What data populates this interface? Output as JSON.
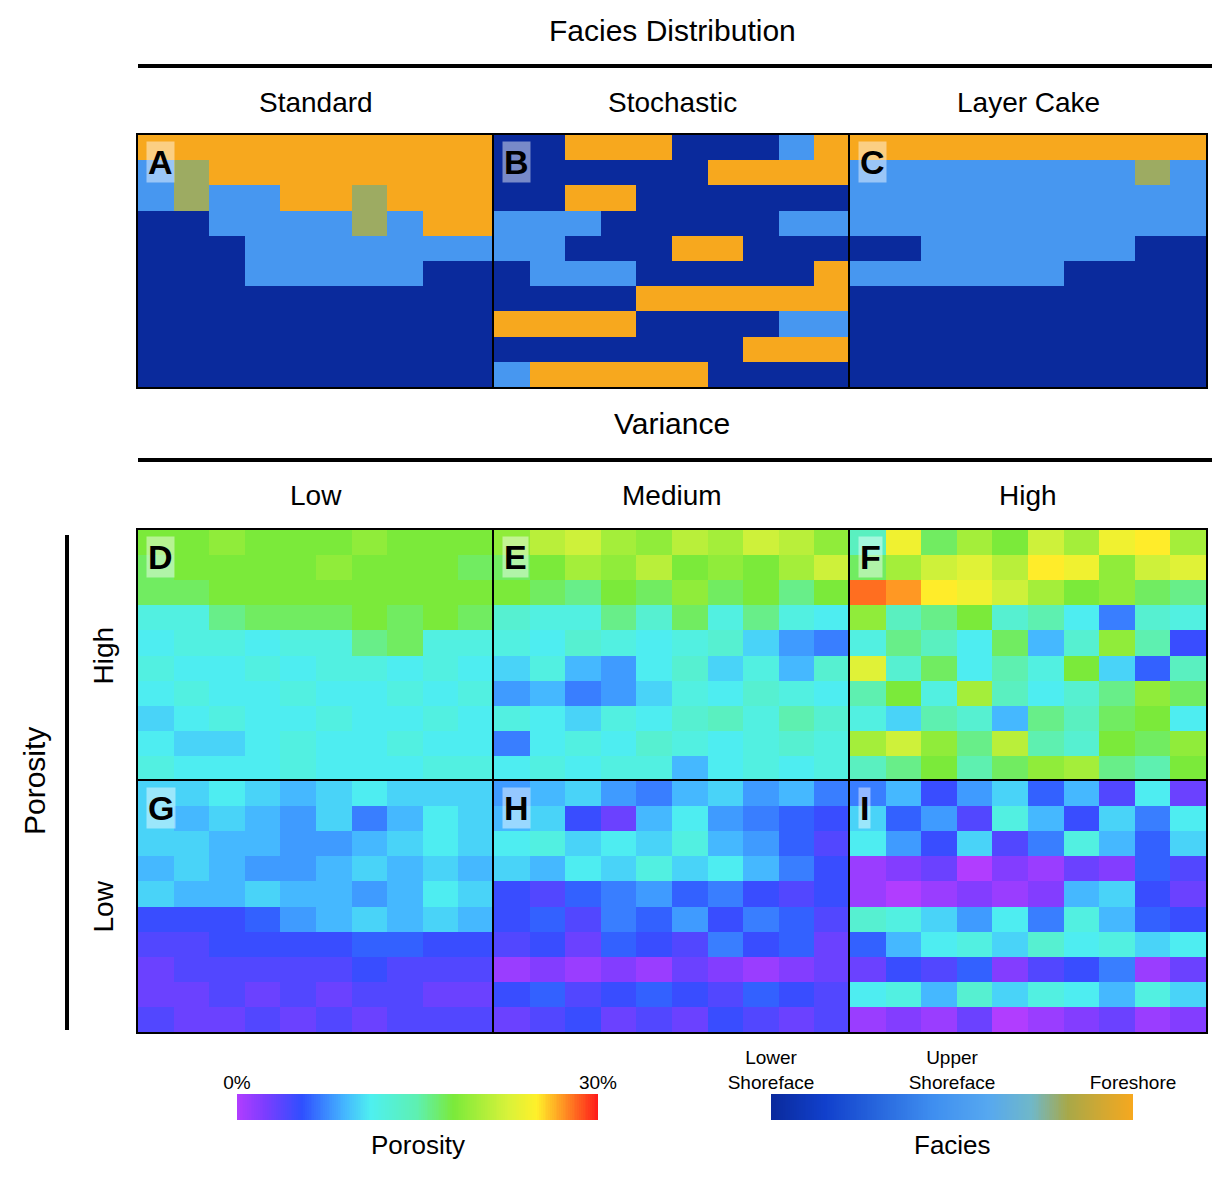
{
  "chart_data": {
    "type": "heatmap",
    "title": "Facies Distribution",
    "columns": [
      "Standard",
      "Stochastic",
      "Layer Cake"
    ],
    "variance_title": "Variance",
    "variance_columns": [
      "Low",
      "Medium",
      "High"
    ],
    "porosity_title": "Porosity",
    "porosity_rows": [
      "High",
      "Low"
    ],
    "tick_labels": false,
    "facies_panels": [
      {
        "label": "A",
        "cells": [
          [
            2,
            2,
            2,
            2,
            2,
            2,
            2,
            2,
            2,
            2
          ],
          [
            1,
            1.6,
            2,
            2,
            2,
            2,
            2,
            2,
            2,
            2
          ],
          [
            1,
            1.6,
            1,
            1,
            2,
            2,
            1.6,
            2,
            2,
            2
          ],
          [
            0,
            0,
            1,
            1,
            1,
            1,
            1.6,
            1,
            2,
            2
          ],
          [
            0,
            0,
            0,
            1,
            1,
            1,
            1,
            1,
            1,
            1
          ],
          [
            0,
            0,
            0,
            1,
            1,
            1,
            1,
            1,
            0,
            0
          ],
          [
            0,
            0,
            0,
            0,
            0,
            0,
            0,
            0,
            0,
            0
          ],
          [
            0,
            0,
            0,
            0,
            0,
            0,
            0,
            0,
            0,
            0
          ],
          [
            0,
            0,
            0,
            0,
            0,
            0,
            0,
            0,
            0,
            0
          ],
          [
            0,
            0,
            0,
            0,
            0,
            0,
            0,
            0,
            0,
            0
          ]
        ]
      },
      {
        "label": "B",
        "cells": [
          [
            0,
            0,
            2,
            2,
            2,
            0,
            0,
            0,
            1,
            2
          ],
          [
            0,
            0,
            0,
            0,
            0,
            0,
            2,
            2,
            2,
            2
          ],
          [
            0,
            0,
            2,
            2,
            0,
            0,
            0,
            0,
            0,
            0
          ],
          [
            1,
            1,
            1,
            0,
            0,
            0,
            0,
            0,
            1,
            1
          ],
          [
            1,
            1,
            0,
            0,
            0,
            2,
            2,
            0,
            0,
            0
          ],
          [
            0,
            1,
            1,
            1,
            0,
            0,
            0,
            0,
            0,
            2
          ],
          [
            0,
            0,
            0,
            0,
            2,
            2,
            2,
            2,
            2,
            2
          ],
          [
            2,
            2,
            2,
            2,
            0,
            0,
            0,
            0,
            1,
            1
          ],
          [
            0,
            0,
            0,
            0,
            0,
            0,
            0,
            2,
            2,
            2
          ],
          [
            1,
            2,
            2,
            2,
            2,
            2,
            0,
            0,
            0,
            0
          ]
        ]
      },
      {
        "label": "C",
        "cells": [
          [
            2,
            2,
            2,
            2,
            2,
            2,
            2,
            2,
            2,
            2
          ],
          [
            1,
            1,
            1,
            1,
            1,
            1,
            1,
            1,
            1.6,
            1
          ],
          [
            1,
            1,
            1,
            1,
            1,
            1,
            1,
            1,
            1,
            1
          ],
          [
            1,
            1,
            1,
            1,
            1,
            1,
            1,
            1,
            1,
            1
          ],
          [
            0,
            0,
            1,
            1,
            1,
            1,
            1,
            1,
            0,
            0
          ],
          [
            1,
            1,
            1,
            1,
            1,
            1,
            0,
            0,
            0,
            0
          ],
          [
            0,
            0,
            0,
            0,
            0,
            0,
            0,
            0,
            0,
            0
          ],
          [
            0,
            0,
            0,
            0,
            0,
            0,
            0,
            0,
            0,
            0
          ],
          [
            0,
            0,
            0,
            0,
            0,
            0,
            0,
            0,
            0,
            0
          ],
          [
            0,
            0,
            0,
            0,
            0,
            0,
            0,
            0,
            0,
            0
          ]
        ]
      }
    ],
    "porosity_panels": [
      {
        "label": "D",
        "cells": [
          [
            18,
            18,
            19,
            18,
            18,
            18,
            19,
            18,
            18,
            18
          ],
          [
            17,
            18,
            18,
            18,
            18,
            19,
            18,
            18,
            18,
            17
          ],
          [
            17,
            17,
            18,
            18,
            18,
            18,
            18,
            18,
            18,
            18
          ],
          [
            12,
            12,
            16,
            17,
            17,
            17,
            18,
            17,
            18,
            17
          ],
          [
            11,
            12,
            12,
            11,
            12,
            12,
            16,
            17,
            12,
            12
          ],
          [
            12,
            11,
            11,
            12,
            11,
            12,
            12,
            11,
            12,
            11
          ],
          [
            11,
            12,
            11,
            11,
            12,
            11,
            11,
            12,
            11,
            12
          ],
          [
            10,
            11,
            12,
            11,
            11,
            12,
            11,
            11,
            12,
            11
          ],
          [
            11,
            10,
            10,
            11,
            12,
            11,
            11,
            12,
            11,
            11
          ],
          [
            12,
            11,
            11,
            11,
            12,
            11,
            11,
            11,
            12,
            12
          ]
        ]
      },
      {
        "label": "E",
        "cells": [
          [
            19,
            21,
            22,
            20,
            19,
            21,
            20,
            22,
            21,
            19
          ],
          [
            17,
            18,
            20,
            19,
            21,
            18,
            19,
            18,
            20,
            22
          ],
          [
            18,
            17,
            16,
            18,
            17,
            19,
            17,
            18,
            16,
            18
          ],
          [
            13,
            12,
            12,
            16,
            13,
            17,
            12,
            16,
            12,
            11
          ],
          [
            12,
            11,
            13,
            12,
            11,
            12,
            13,
            10,
            8,
            7
          ],
          [
            10,
            12,
            9,
            8,
            11,
            13,
            10,
            12,
            9,
            13
          ],
          [
            8,
            9,
            7,
            8,
            10,
            12,
            11,
            13,
            12,
            11
          ],
          [
            12,
            11,
            10,
            12,
            11,
            13,
            14,
            12,
            15,
            13
          ],
          [
            7,
            11,
            12,
            11,
            13,
            12,
            11,
            12,
            13,
            12
          ],
          [
            11,
            12,
            11,
            12,
            12,
            9,
            11,
            12,
            11,
            12
          ]
        ]
      },
      {
        "label": "F",
        "cells": [
          [
            14,
            24,
            17,
            20,
            18,
            22,
            20,
            24,
            25,
            20
          ],
          [
            17,
            20,
            22,
            23,
            21,
            25,
            24,
            19,
            22,
            23
          ],
          [
            28,
            27,
            25,
            24,
            22,
            20,
            18,
            19,
            17,
            16
          ],
          [
            19,
            14,
            16,
            18,
            13,
            15,
            11,
            7,
            13,
            12
          ],
          [
            12,
            16,
            14,
            11,
            17,
            9,
            13,
            19,
            15,
            5
          ],
          [
            23,
            13,
            17,
            11,
            15,
            12,
            18,
            10,
            6,
            14
          ],
          [
            15,
            18,
            12,
            20,
            14,
            11,
            13,
            16,
            19,
            17
          ],
          [
            12,
            10,
            15,
            13,
            9,
            16,
            14,
            17,
            18,
            11
          ],
          [
            20,
            22,
            19,
            16,
            21,
            15,
            13,
            18,
            17,
            19
          ],
          [
            14,
            16,
            18,
            15,
            17,
            19,
            20,
            16,
            15,
            18
          ]
        ]
      },
      {
        "label": "G",
        "cells": [
          [
            10,
            10,
            11,
            10,
            9,
            10,
            11,
            10,
            10,
            10
          ],
          [
            10,
            9,
            10,
            9,
            8,
            10,
            7,
            9,
            11,
            10
          ],
          [
            10,
            10,
            9,
            9,
            8,
            8,
            9,
            10,
            11,
            10
          ],
          [
            9,
            10,
            9,
            8,
            8,
            9,
            10,
            9,
            10,
            9
          ],
          [
            10,
            9,
            9,
            10,
            9,
            9,
            8,
            9,
            11,
            10
          ],
          [
            5,
            5,
            5,
            6,
            8,
            9,
            10,
            9,
            10,
            9
          ],
          [
            4,
            4,
            5,
            5,
            5,
            5,
            6,
            6,
            5,
            5
          ],
          [
            3,
            4,
            4,
            4,
            4,
            4,
            5,
            4,
            4,
            4
          ],
          [
            3,
            3,
            4,
            3,
            4,
            3,
            4,
            4,
            3,
            3
          ],
          [
            4,
            3,
            3,
            4,
            3,
            4,
            3,
            4,
            4,
            4
          ]
        ]
      },
      {
        "label": "H",
        "cells": [
          [
            8,
            9,
            10,
            8,
            7,
            9,
            10,
            8,
            9,
            7
          ],
          [
            9,
            10,
            5,
            3,
            9,
            11,
            8,
            7,
            6,
            5
          ],
          [
            11,
            12,
            10,
            11,
            10,
            12,
            9,
            8,
            6,
            4
          ],
          [
            10,
            9,
            11,
            10,
            12,
            10,
            11,
            9,
            7,
            5
          ],
          [
            5,
            4,
            6,
            7,
            8,
            6,
            7,
            5,
            4,
            5
          ],
          [
            5,
            6,
            4,
            7,
            6,
            8,
            5,
            7,
            6,
            4
          ],
          [
            4,
            5,
            3,
            6,
            5,
            4,
            7,
            5,
            6,
            3
          ],
          [
            1,
            2,
            1,
            2,
            1,
            3,
            2,
            1,
            2,
            3
          ],
          [
            5,
            6,
            4,
            5,
            6,
            5,
            4,
            6,
            5,
            4
          ],
          [
            3,
            4,
            5,
            3,
            4,
            3,
            5,
            4,
            3,
            4
          ]
        ]
      },
      {
        "label": "I",
        "cells": [
          [
            7,
            9,
            5,
            8,
            10,
            6,
            9,
            4,
            11,
            3
          ],
          [
            10,
            6,
            8,
            4,
            12,
            9,
            5,
            10,
            7,
            11
          ],
          [
            11,
            8,
            5,
            10,
            4,
            7,
            12,
            9,
            6,
            10
          ],
          [
            1,
            2,
            3,
            0,
            2,
            1,
            3,
            2,
            6,
            4
          ],
          [
            1,
            0,
            1,
            2,
            1,
            2,
            9,
            10,
            5,
            3
          ],
          [
            13,
            12,
            10,
            8,
            11,
            7,
            12,
            9,
            6,
            5
          ],
          [
            6,
            9,
            11,
            12,
            10,
            13,
            11,
            12,
            10,
            11
          ],
          [
            3,
            5,
            4,
            6,
            2,
            4,
            5,
            7,
            1,
            3
          ],
          [
            11,
            12,
            9,
            13,
            10,
            12,
            11,
            9,
            12,
            10
          ],
          [
            1,
            2,
            1,
            3,
            0,
            1,
            2,
            3,
            1,
            2
          ]
        ]
      }
    ],
    "porosity_colorbar": {
      "title": "Porosity",
      "range": [
        0,
        30
      ],
      "ticks": [
        {
          "value": 0,
          "label": "0%"
        },
        {
          "value": 30,
          "label": "30%"
        }
      ]
    },
    "facies_colorbar": {
      "title": "Facies",
      "range": [
        0,
        2
      ],
      "ticks": [
        {
          "value": 0,
          "label": "Lower Shoreface"
        },
        {
          "value": 1,
          "label": "Upper Shoreface"
        },
        {
          "value": 2,
          "label": "Foreshore"
        }
      ]
    }
  }
}
